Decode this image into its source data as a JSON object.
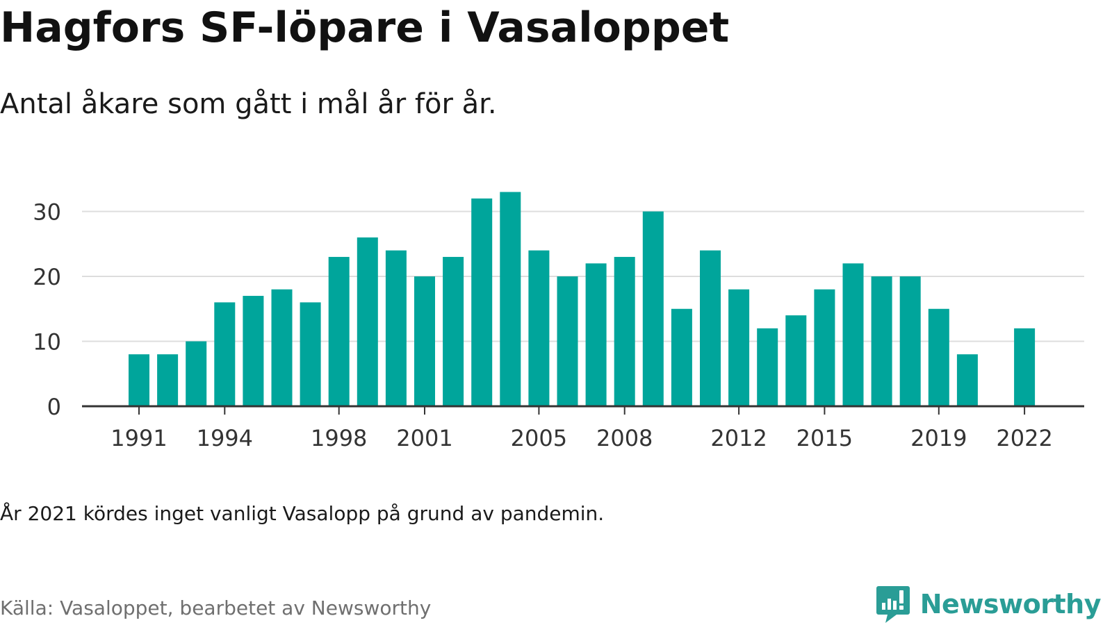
{
  "title": "Hagfors SF-löpare i Vasaloppet",
  "subtitle": "Antal åkare som gått i mål år för år.",
  "note": "År 2021 kördes inget vanligt Vasalopp på grund av pandemin.",
  "source": "Källa: Vasaloppet, bearbetet av Newsworthy",
  "brand": {
    "name": "Newsworthy",
    "icon": "newsworthy-logo-icon",
    "color": "#2a9d96"
  },
  "colors": {
    "bar": "#00a59b",
    "grid": "#dddddd",
    "axis": "#333333",
    "tick_text": "#333333"
  },
  "chart_data": {
    "type": "bar",
    "title": "",
    "xlabel": "",
    "ylabel": "",
    "ylim": [
      0,
      35
    ],
    "yticks": [
      0,
      10,
      20,
      30
    ],
    "xtick_labels": [
      "1991",
      "1994",
      "1998",
      "2001",
      "2005",
      "2008",
      "2012",
      "2015",
      "2019",
      "2022"
    ],
    "grid": true,
    "categories": [
      1991,
      1992,
      1993,
      1994,
      1995,
      1996,
      1997,
      1998,
      1999,
      2000,
      2001,
      2002,
      2003,
      2004,
      2005,
      2006,
      2007,
      2008,
      2009,
      2010,
      2011,
      2012,
      2013,
      2014,
      2015,
      2016,
      2017,
      2018,
      2019,
      2020,
      2021,
      2022
    ],
    "values": [
      8,
      8,
      10,
      16,
      17,
      18,
      16,
      23,
      26,
      24,
      20,
      23,
      32,
      33,
      24,
      20,
      22,
      23,
      30,
      15,
      24,
      18,
      12,
      14,
      18,
      22,
      20,
      20,
      15,
      8,
      null,
      12
    ]
  }
}
